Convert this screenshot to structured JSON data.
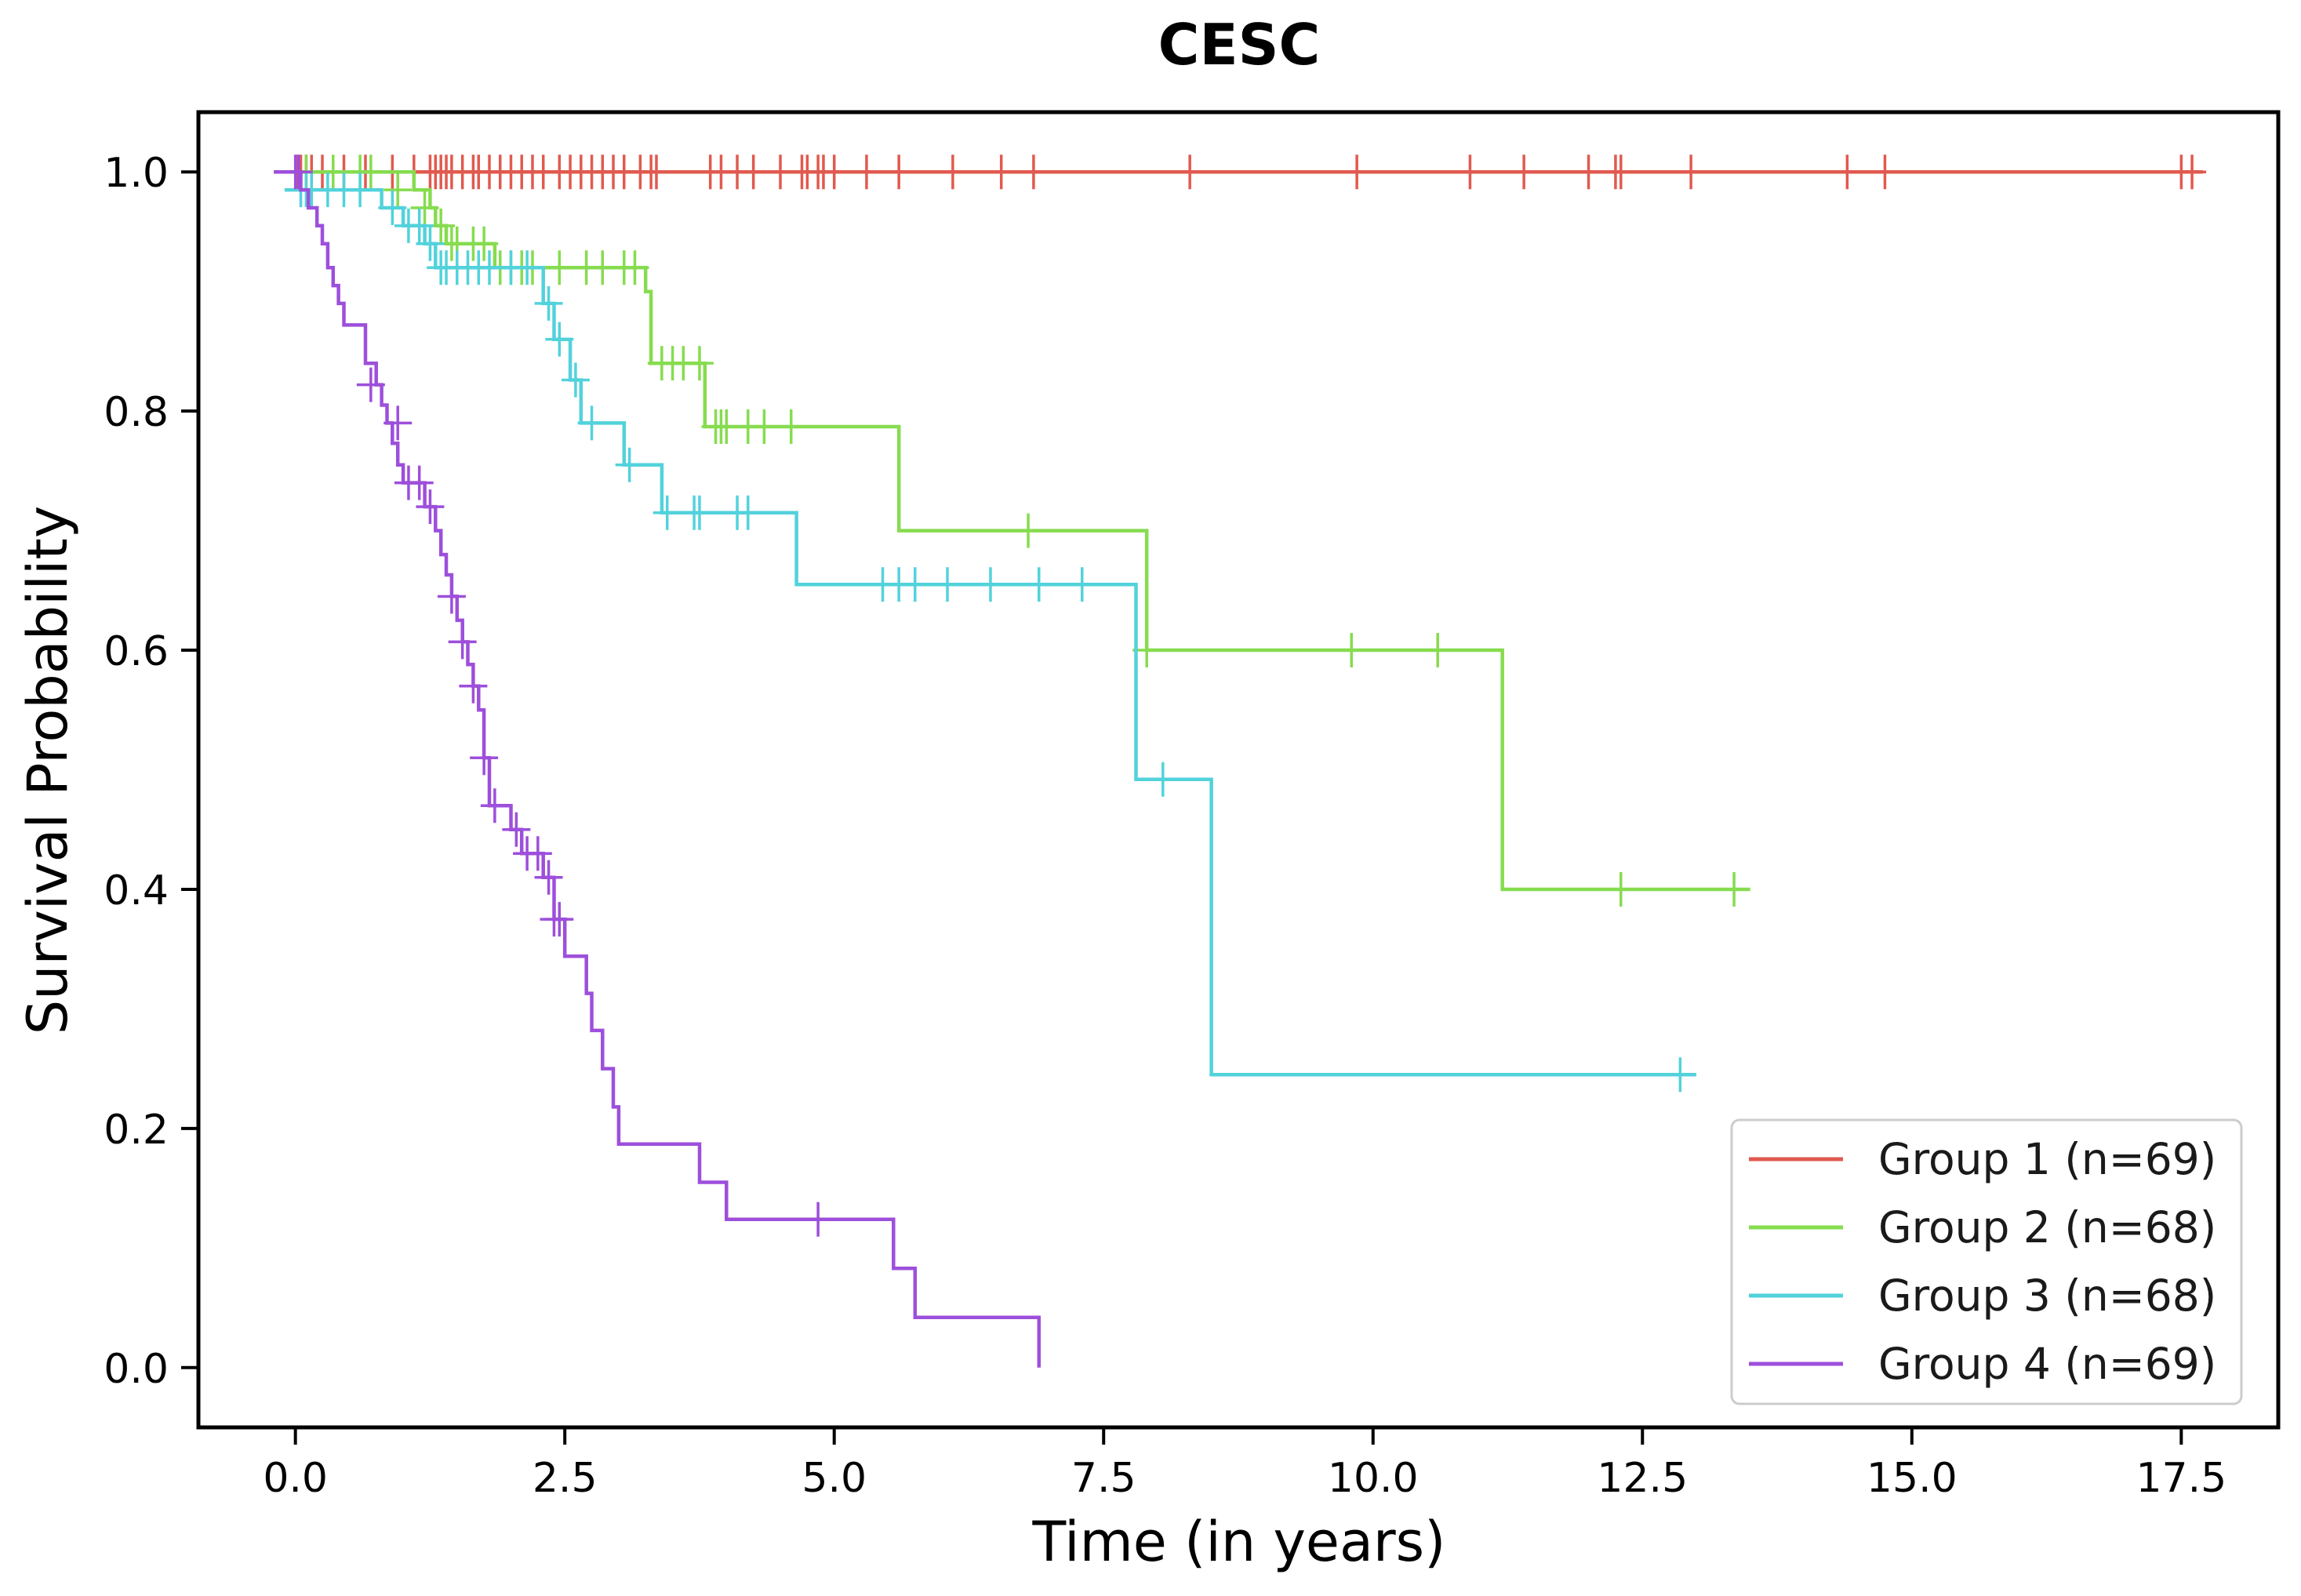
{
  "chart_data": {
    "type": "line",
    "subtype": "kaplan-meier",
    "title": "CESC",
    "xlabel": "Time (in years)",
    "ylabel": "Survival Probability",
    "xlim": [
      -0.9,
      18.4
    ],
    "ylim": [
      -0.05,
      1.05
    ],
    "xticks": [
      0.0,
      2.5,
      5.0,
      7.5,
      10.0,
      12.5,
      15.0,
      17.5
    ],
    "yticks": [
      0.0,
      0.2,
      0.4,
      0.6,
      0.8,
      1.0
    ],
    "xtick_labels": [
      "0.0",
      "2.5",
      "5.0",
      "7.5",
      "10.0",
      "12.5",
      "15.0",
      "17.5"
    ],
    "ytick_labels": [
      "0.0",
      "0.2",
      "0.4",
      "0.6",
      "0.8",
      "1.0"
    ],
    "grid": false,
    "legend_position": "lower-right",
    "series": [
      {
        "name": "Group 1 (n=69)",
        "color": "#e05a4f",
        "steps": [
          [
            -0.2,
            1.0
          ],
          [
            17.7,
            1.0
          ]
        ],
        "censors": [
          [
            0.02,
            1.0
          ],
          [
            0.05,
            1.0
          ],
          [
            0.1,
            1.0
          ],
          [
            0.15,
            1.0
          ],
          [
            0.25,
            1.0
          ],
          [
            0.45,
            1.0
          ],
          [
            0.65,
            1.0
          ],
          [
            0.9,
            1.0
          ],
          [
            1.1,
            1.0
          ],
          [
            1.25,
            1.0
          ],
          [
            1.3,
            1.0
          ],
          [
            1.35,
            1.0
          ],
          [
            1.4,
            1.0
          ],
          [
            1.45,
            1.0
          ],
          [
            1.55,
            1.0
          ],
          [
            1.65,
            1.0
          ],
          [
            1.7,
            1.0
          ],
          [
            1.8,
            1.0
          ],
          [
            1.9,
            1.0
          ],
          [
            2.0,
            1.0
          ],
          [
            2.1,
            1.0
          ],
          [
            2.2,
            1.0
          ],
          [
            2.3,
            1.0
          ],
          [
            2.45,
            1.0
          ],
          [
            2.55,
            1.0
          ],
          [
            2.65,
            1.0
          ],
          [
            2.75,
            1.0
          ],
          [
            2.85,
            1.0
          ],
          [
            2.95,
            1.0
          ],
          [
            3.05,
            1.0
          ],
          [
            3.2,
            1.0
          ],
          [
            3.3,
            1.0
          ],
          [
            3.35,
            1.0
          ],
          [
            3.85,
            1.0
          ],
          [
            3.95,
            1.0
          ],
          [
            4.1,
            1.0
          ],
          [
            4.25,
            1.0
          ],
          [
            4.5,
            1.0
          ],
          [
            4.7,
            1.0
          ],
          [
            4.75,
            1.0
          ],
          [
            4.85,
            1.0
          ],
          [
            4.9,
            1.0
          ],
          [
            5.0,
            1.0
          ],
          [
            5.3,
            1.0
          ],
          [
            5.6,
            1.0
          ],
          [
            6.1,
            1.0
          ],
          [
            6.55,
            1.0
          ],
          [
            6.85,
            1.0
          ],
          [
            8.3,
            1.0
          ],
          [
            9.85,
            1.0
          ],
          [
            10.9,
            1.0
          ],
          [
            11.4,
            1.0
          ],
          [
            12.0,
            1.0
          ],
          [
            12.25,
            1.0
          ],
          [
            12.3,
            1.0
          ],
          [
            12.95,
            1.0
          ],
          [
            14.4,
            1.0
          ],
          [
            14.75,
            1.0
          ],
          [
            17.5,
            1.0
          ],
          [
            17.6,
            1.0
          ]
        ]
      },
      {
        "name": "Group 2 (n=68)",
        "color": "#86dc4f",
        "steps": [
          [
            -0.2,
            1.0
          ],
          [
            1.1,
            1.0
          ],
          [
            1.1,
            0.985
          ],
          [
            1.25,
            0.985
          ],
          [
            1.25,
            0.97
          ],
          [
            1.3,
            0.97
          ],
          [
            1.3,
            0.955
          ],
          [
            1.4,
            0.955
          ],
          [
            1.4,
            0.94
          ],
          [
            1.85,
            0.94
          ],
          [
            1.85,
            0.92
          ],
          [
            3.25,
            0.92
          ],
          [
            3.25,
            0.9
          ],
          [
            3.3,
            0.9
          ],
          [
            3.3,
            0.84
          ],
          [
            3.8,
            0.84
          ],
          [
            3.8,
            0.787
          ],
          [
            5.6,
            0.787
          ],
          [
            5.6,
            0.7
          ],
          [
            7.9,
            0.7
          ],
          [
            7.9,
            0.6
          ],
          [
            11.2,
            0.6
          ],
          [
            11.2,
            0.4
          ],
          [
            13.5,
            0.4
          ]
        ],
        "censors": [
          [
            0.1,
            1.0
          ],
          [
            0.35,
            1.0
          ],
          [
            0.6,
            1.0
          ],
          [
            0.7,
            1.0
          ],
          [
            0.95,
            0.985
          ],
          [
            1.2,
            0.97
          ],
          [
            1.35,
            0.955
          ],
          [
            1.45,
            0.94
          ],
          [
            1.5,
            0.94
          ],
          [
            1.65,
            0.94
          ],
          [
            1.75,
            0.94
          ],
          [
            1.9,
            0.92
          ],
          [
            2.0,
            0.92
          ],
          [
            2.1,
            0.92
          ],
          [
            2.2,
            0.92
          ],
          [
            2.45,
            0.92
          ],
          [
            2.7,
            0.92
          ],
          [
            2.85,
            0.92
          ],
          [
            3.05,
            0.92
          ],
          [
            3.15,
            0.92
          ],
          [
            3.4,
            0.84
          ],
          [
            3.5,
            0.84
          ],
          [
            3.6,
            0.84
          ],
          [
            3.75,
            0.84
          ],
          [
            3.9,
            0.787
          ],
          [
            3.95,
            0.787
          ],
          [
            4.0,
            0.787
          ],
          [
            4.2,
            0.787
          ],
          [
            4.35,
            0.787
          ],
          [
            4.6,
            0.787
          ],
          [
            6.8,
            0.7
          ],
          [
            7.9,
            0.6
          ],
          [
            9.8,
            0.6
          ],
          [
            10.6,
            0.6
          ],
          [
            12.3,
            0.4
          ],
          [
            13.35,
            0.4
          ]
        ]
      },
      {
        "name": "Group 3 (n=68)",
        "color": "#52d2db",
        "steps": [
          [
            -0.1,
            0.985
          ],
          [
            0.8,
            0.985
          ],
          [
            0.8,
            0.97
          ],
          [
            1.0,
            0.97
          ],
          [
            1.0,
            0.955
          ],
          [
            1.2,
            0.955
          ],
          [
            1.2,
            0.94
          ],
          [
            1.3,
            0.94
          ],
          [
            1.3,
            0.92
          ],
          [
            2.3,
            0.92
          ],
          [
            2.3,
            0.89
          ],
          [
            2.4,
            0.89
          ],
          [
            2.4,
            0.86
          ],
          [
            2.55,
            0.86
          ],
          [
            2.55,
            0.826
          ],
          [
            2.65,
            0.826
          ],
          [
            2.65,
            0.79
          ],
          [
            3.05,
            0.79
          ],
          [
            3.05,
            0.755
          ],
          [
            3.4,
            0.755
          ],
          [
            3.4,
            0.715
          ],
          [
            4.65,
            0.715
          ],
          [
            4.65,
            0.655
          ],
          [
            7.8,
            0.655
          ],
          [
            7.8,
            0.492
          ],
          [
            8.5,
            0.492
          ],
          [
            8.5,
            0.245
          ],
          [
            13.0,
            0.245
          ]
        ],
        "censors": [
          [
            0.05,
            0.985
          ],
          [
            0.1,
            0.985
          ],
          [
            0.15,
            0.985
          ],
          [
            0.3,
            0.985
          ],
          [
            0.45,
            0.985
          ],
          [
            0.6,
            0.985
          ],
          [
            0.9,
            0.97
          ],
          [
            1.05,
            0.955
          ],
          [
            1.15,
            0.955
          ],
          [
            1.25,
            0.94
          ],
          [
            1.35,
            0.92
          ],
          [
            1.4,
            0.92
          ],
          [
            1.5,
            0.92
          ],
          [
            1.6,
            0.92
          ],
          [
            1.7,
            0.92
          ],
          [
            1.8,
            0.92
          ],
          [
            2.0,
            0.92
          ],
          [
            2.15,
            0.92
          ],
          [
            2.35,
            0.89
          ],
          [
            2.45,
            0.86
          ],
          [
            2.6,
            0.826
          ],
          [
            2.75,
            0.79
          ],
          [
            3.1,
            0.755
          ],
          [
            3.45,
            0.715
          ],
          [
            3.7,
            0.715
          ],
          [
            3.75,
            0.715
          ],
          [
            4.1,
            0.715
          ],
          [
            4.2,
            0.715
          ],
          [
            5.45,
            0.655
          ],
          [
            5.6,
            0.655
          ],
          [
            5.75,
            0.655
          ],
          [
            6.05,
            0.655
          ],
          [
            6.45,
            0.655
          ],
          [
            6.9,
            0.655
          ],
          [
            7.3,
            0.655
          ],
          [
            8.05,
            0.492
          ],
          [
            12.85,
            0.245
          ]
        ]
      },
      {
        "name": "Group 4 (n=69)",
        "color": "#9d4fdb",
        "steps": [
          [
            -0.2,
            1.0
          ],
          [
            0.05,
            1.0
          ],
          [
            0.05,
            0.985
          ],
          [
            0.12,
            0.985
          ],
          [
            0.12,
            0.97
          ],
          [
            0.2,
            0.97
          ],
          [
            0.2,
            0.955
          ],
          [
            0.25,
            0.955
          ],
          [
            0.25,
            0.94
          ],
          [
            0.3,
            0.94
          ],
          [
            0.3,
            0.92
          ],
          [
            0.35,
            0.92
          ],
          [
            0.35,
            0.905
          ],
          [
            0.4,
            0.905
          ],
          [
            0.4,
            0.89
          ],
          [
            0.45,
            0.89
          ],
          [
            0.45,
            0.872
          ],
          [
            0.65,
            0.872
          ],
          [
            0.65,
            0.84
          ],
          [
            0.75,
            0.84
          ],
          [
            0.75,
            0.822
          ],
          [
            0.8,
            0.822
          ],
          [
            0.8,
            0.805
          ],
          [
            0.85,
            0.805
          ],
          [
            0.85,
            0.79
          ],
          [
            0.9,
            0.79
          ],
          [
            0.9,
            0.773
          ],
          [
            0.95,
            0.773
          ],
          [
            0.95,
            0.755
          ],
          [
            1.0,
            0.755
          ],
          [
            1.0,
            0.74
          ],
          [
            1.2,
            0.74
          ],
          [
            1.2,
            0.72
          ],
          [
            1.3,
            0.72
          ],
          [
            1.3,
            0.7
          ],
          [
            1.35,
            0.7
          ],
          [
            1.35,
            0.68
          ],
          [
            1.4,
            0.68
          ],
          [
            1.4,
            0.663
          ],
          [
            1.45,
            0.663
          ],
          [
            1.45,
            0.645
          ],
          [
            1.5,
            0.645
          ],
          [
            1.5,
            0.625
          ],
          [
            1.55,
            0.625
          ],
          [
            1.55,
            0.607
          ],
          [
            1.6,
            0.607
          ],
          [
            1.6,
            0.588
          ],
          [
            1.65,
            0.588
          ],
          [
            1.65,
            0.57
          ],
          [
            1.7,
            0.57
          ],
          [
            1.7,
            0.55
          ],
          [
            1.75,
            0.55
          ],
          [
            1.75,
            0.51
          ],
          [
            1.8,
            0.51
          ],
          [
            1.8,
            0.47
          ],
          [
            2.0,
            0.47
          ],
          [
            2.0,
            0.45
          ],
          [
            2.1,
            0.45
          ],
          [
            2.1,
            0.43
          ],
          [
            2.3,
            0.43
          ],
          [
            2.3,
            0.41
          ],
          [
            2.4,
            0.41
          ],
          [
            2.4,
            0.375
          ],
          [
            2.5,
            0.375
          ],
          [
            2.5,
            0.344
          ],
          [
            2.7,
            0.344
          ],
          [
            2.7,
            0.313
          ],
          [
            2.75,
            0.313
          ],
          [
            2.75,
            0.282
          ],
          [
            2.85,
            0.282
          ],
          [
            2.85,
            0.25
          ],
          [
            2.95,
            0.25
          ],
          [
            2.95,
            0.218
          ],
          [
            3.0,
            0.218
          ],
          [
            3.0,
            0.187
          ],
          [
            3.75,
            0.187
          ],
          [
            3.75,
            0.155
          ],
          [
            4.0,
            0.155
          ],
          [
            4.0,
            0.124
          ],
          [
            5.55,
            0.124
          ],
          [
            5.55,
            0.083
          ],
          [
            5.75,
            0.083
          ],
          [
            5.75,
            0.042
          ],
          [
            6.9,
            0.042
          ],
          [
            6.9,
            0.0
          ]
        ],
        "censors": [
          [
            0.0,
            1.0
          ],
          [
            0.03,
            1.0
          ],
          [
            0.7,
            0.822
          ],
          [
            0.95,
            0.79
          ],
          [
            1.05,
            0.74
          ],
          [
            1.15,
            0.74
          ],
          [
            1.25,
            0.72
          ],
          [
            1.45,
            0.645
          ],
          [
            1.55,
            0.607
          ],
          [
            1.65,
            0.57
          ],
          [
            1.75,
            0.51
          ],
          [
            1.85,
            0.47
          ],
          [
            2.05,
            0.45
          ],
          [
            2.15,
            0.43
          ],
          [
            2.25,
            0.43
          ],
          [
            2.35,
            0.41
          ],
          [
            2.4,
            0.375
          ],
          [
            2.45,
            0.375
          ],
          [
            4.85,
            0.124
          ]
        ]
      }
    ]
  }
}
